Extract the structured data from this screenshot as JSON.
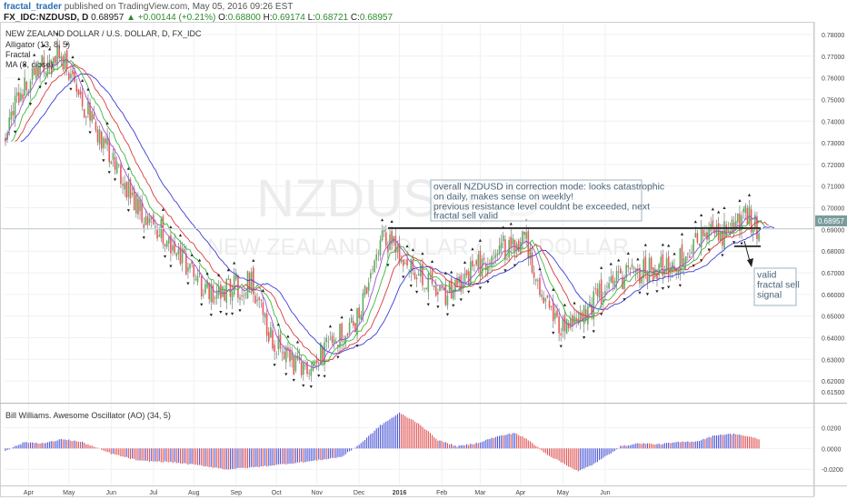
{
  "header": {
    "user": "fractal_trader",
    "published": "published on TradingView.com, May 05, 2016 09:26 EST",
    "symbol": "FX_IDC:NZDUSD, D",
    "last": "0.68957",
    "change": "▲ +0.00144 (+0.21%)",
    "o_label": "O:",
    "o_val": "0.68800",
    "h_label": "H:",
    "h_val": "0.69174",
    "l_label": "L:",
    "l_val": "0.68721",
    "c_label": "C:",
    "c_val": "0.68957"
  },
  "legend": {
    "title": "NEW ZEALAND DOLLAR / U.S. DOLLAR, D, FX_IDC",
    "indicators": [
      "Alligator (13, 8, 5)",
      "Fractal",
      "MA (8, close)"
    ]
  },
  "watermark": {
    "symbol": "NZDUSD, D",
    "name": "NEW ZEALAND DOLLAR / U.S. DOLLAR"
  },
  "annotations": {
    "main_note": [
      "overall NZDUSD in correction mode: looks catastrophic",
      "on daily, makes sense on weekly!",
      "previous resistance level couldnt be exceeded, next",
      "fractal sell valid"
    ],
    "signal_note": [
      "valid",
      "fractal sell",
      "signal"
    ]
  },
  "price_tag": "0.68957",
  "oscillator_label": "Bill Williams. Awesome Oscillator (AO) (34, 5)",
  "colors": {
    "up": "#5fae5f",
    "down": "#ea5a5a",
    "ao_up": "#4a55d6",
    "ao_down": "#e05050",
    "jaw": "#3c3cd8",
    "teeth": "#d83c3c",
    "lips": "#3cb83c",
    "ma": "#a24fd0"
  },
  "chart_data": {
    "type": "candlestick",
    "price_axis": {
      "ticks": [
        "0.78000",
        "0.77000",
        "0.76000",
        "0.75000",
        "0.74000",
        "0.73000",
        "0.72000",
        "0.71000",
        "0.70000",
        "0.69000",
        "0.68000",
        "0.67000",
        "0.66000",
        "0.65000",
        "0.64000",
        "0.63000",
        "0.62000",
        "0.61500"
      ],
      "range": [
        0.6125,
        0.7825
      ]
    },
    "ao_axis": {
      "ticks": [
        "0.0200",
        "0.0000",
        "-0.0200"
      ],
      "range": [
        -0.032,
        0.036
      ]
    },
    "x_axis": {
      "labels": [
        "Apr",
        "May",
        "Jun",
        "Jul",
        "Aug",
        "Sep",
        "Oct",
        "Nov",
        "Dec",
        "2016",
        "Feb",
        "Mar",
        "Apr",
        "May",
        "Jun"
      ]
    },
    "price_keypoints": [
      [
        0,
        0.732
      ],
      [
        8,
        0.755
      ],
      [
        18,
        0.764
      ],
      [
        28,
        0.77
      ],
      [
        34,
        0.762
      ],
      [
        40,
        0.748
      ],
      [
        52,
        0.73
      ],
      [
        62,
        0.712
      ],
      [
        72,
        0.696
      ],
      [
        82,
        0.688
      ],
      [
        90,
        0.68
      ],
      [
        100,
        0.665
      ],
      [
        108,
        0.66
      ],
      [
        118,
        0.664
      ],
      [
        128,
        0.665
      ],
      [
        138,
        0.64
      ],
      [
        146,
        0.63
      ],
      [
        156,
        0.626
      ],
      [
        166,
        0.635
      ],
      [
        176,
        0.643
      ],
      [
        184,
        0.65
      ],
      [
        190,
        0.668
      ],
      [
        196,
        0.686
      ],
      [
        204,
        0.682
      ],
      [
        212,
        0.672
      ],
      [
        220,
        0.664
      ],
      [
        228,
        0.66
      ],
      [
        238,
        0.668
      ],
      [
        250,
        0.676
      ],
      [
        262,
        0.683
      ],
      [
        270,
        0.686
      ],
      [
        276,
        0.67
      ],
      [
        284,
        0.652
      ],
      [
        292,
        0.644
      ],
      [
        300,
        0.65
      ],
      [
        308,
        0.66
      ],
      [
        318,
        0.666
      ],
      [
        328,
        0.671
      ],
      [
        338,
        0.671
      ],
      [
        348,
        0.675
      ],
      [
        356,
        0.679
      ],
      [
        364,
        0.69
      ],
      [
        372,
        0.686
      ],
      [
        380,
        0.693
      ],
      [
        386,
        0.696
      ],
      [
        392,
        0.689
      ]
    ],
    "horizontal_lines": [
      {
        "label": "resistance",
        "price": 0.6906
      },
      {
        "label": "fractal sell",
        "price": 0.6822
      }
    ],
    "ao_keypoints": [
      [
        0,
        -0.002
      ],
      [
        10,
        0.006
      ],
      [
        20,
        0.005
      ],
      [
        30,
        0.009
      ],
      [
        40,
        0.006
      ],
      [
        55,
        -0.005
      ],
      [
        70,
        -0.012
      ],
      [
        85,
        -0.013
      ],
      [
        100,
        -0.016
      ],
      [
        115,
        -0.02
      ],
      [
        130,
        -0.018
      ],
      [
        145,
        -0.015
      ],
      [
        160,
        -0.012
      ],
      [
        175,
        -0.008
      ],
      [
        185,
        0.005
      ],
      [
        195,
        0.022
      ],
      [
        205,
        0.034
      ],
      [
        215,
        0.024
      ],
      [
        225,
        0.008
      ],
      [
        235,
        0.002
      ],
      [
        245,
        0.005
      ],
      [
        255,
        0.011
      ],
      [
        265,
        0.015
      ],
      [
        272,
        0.008
      ],
      [
        282,
        -0.006
      ],
      [
        292,
        -0.016
      ],
      [
        298,
        -0.022
      ],
      [
        305,
        -0.016
      ],
      [
        312,
        -0.008
      ],
      [
        320,
        0.002
      ],
      [
        330,
        0.005
      ],
      [
        340,
        0.004
      ],
      [
        350,
        0.006
      ],
      [
        360,
        0.007
      ],
      [
        370,
        0.013
      ],
      [
        380,
        0.014
      ],
      [
        392,
        0.009
      ]
    ]
  }
}
